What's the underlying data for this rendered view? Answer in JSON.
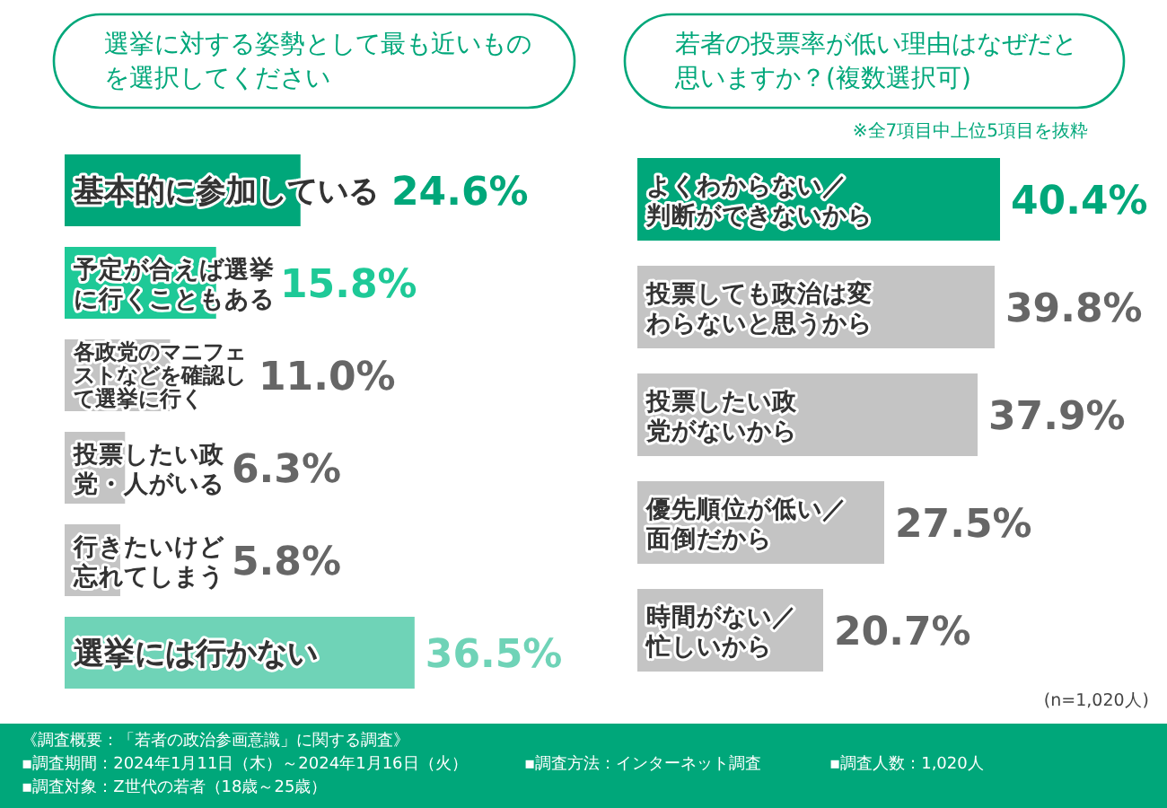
{
  "chart_data": [
    {
      "type": "bar",
      "orientation": "horizontal",
      "title": "選挙に対する姿勢として最も近いものを選択してください",
      "categories": [
        "基本的に参加している",
        "予定が合えば選挙に行くこともある",
        "各政党のマニフェストなどを確認して選挙に行く",
        "投票したい政党・人がいる",
        "行きたいけど忘れてしまう",
        "選挙には行かない"
      ],
      "values": [
        24.6,
        15.8,
        11.0,
        6.3,
        5.8,
        36.5
      ],
      "value_labels": [
        "24.6%",
        "15.8%",
        "11.0%",
        "6.3%",
        "5.8%",
        "36.5%"
      ],
      "colors": [
        "#00a77a",
        "#1ec997",
        "#c4c4c4",
        "#c4c4c4",
        "#c4c4c4",
        "#6fd3b7"
      ],
      "annotations": [
        "《調査概要：「若者の政治参画意識」に関する調査》",
        "▪調査期間：2024年1月11日（木）～2024年1月16日（火）",
        "▪調査対象：Z世代の若者（18歳～25歳）",
        "▪調査方法：インターネット調査",
        "▪調査人数：1,020人"
      ]
    },
    {
      "type": "bar",
      "orientation": "horizontal",
      "title": "若者の投票率が低い理由はなぜだと思いますか？(複数選択可)",
      "subtitle": "※全7項目中上位5項目を抜粋",
      "categories": [
        "よくわからない／判断ができないから",
        "投票しても政治は変わらないと思うから",
        "投票したい政党がないから",
        "優先順位が低い／面倒だから",
        "時間がない／忙しいから"
      ],
      "values": [
        40.4,
        39.8,
        37.9,
        27.5,
        20.7
      ],
      "value_labels": [
        "40.4%",
        "39.8%",
        "37.9%",
        "27.5%",
        "20.7%"
      ],
      "colors": [
        "#00a77a",
        "#c4c4c4",
        "#c4c4c4",
        "#c4c4c4",
        "#c4c4c4"
      ],
      "annotations": [
        "(n=1,020人)"
      ]
    }
  ]
}
